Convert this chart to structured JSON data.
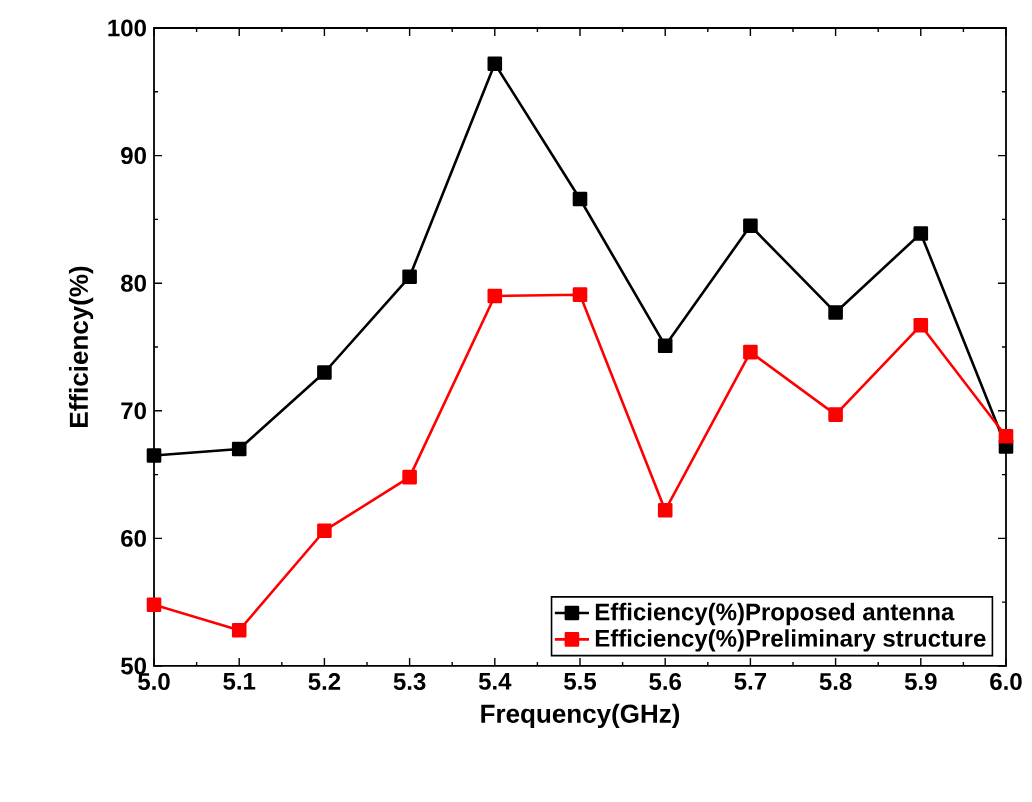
{
  "chart_data": {
    "type": "line",
    "xlabel": "Frequency(GHz)",
    "ylabel": "Efficiency(%)",
    "x": [
      5.0,
      5.1,
      5.2,
      5.3,
      5.4,
      5.5,
      5.6,
      5.7,
      5.8,
      5.9,
      6.0
    ],
    "series": [
      {
        "name": "Efficiency(%)Proposed antenna",
        "color": "#000000",
        "values": [
          66.5,
          67.0,
          73.0,
          80.5,
          97.2,
          86.6,
          75.1,
          84.5,
          77.7,
          83.9,
          67.2
        ]
      },
      {
        "name": "Efficiency(%)Preliminary structure",
        "color": "#ff0000",
        "values": [
          54.8,
          52.8,
          60.6,
          64.8,
          79.0,
          79.1,
          62.2,
          74.6,
          69.7,
          76.7,
          68.0
        ]
      }
    ],
    "xlim": [
      5.0,
      6.0
    ],
    "xticks": [
      {
        "value": 5.0,
        "label": "5.0"
      },
      5.1,
      5.2,
      5.3,
      5.4,
      5.5,
      5.6,
      5.7,
      5.8,
      5.9,
      {
        "value": 6.0,
        "label": "6.0"
      }
    ],
    "ylim": [
      50,
      100
    ],
    "yticks": [
      50,
      60,
      70,
      80,
      90,
      100
    ],
    "marker": "square",
    "line_style": "solid",
    "legend": "bottom right",
    "grid": false
  }
}
